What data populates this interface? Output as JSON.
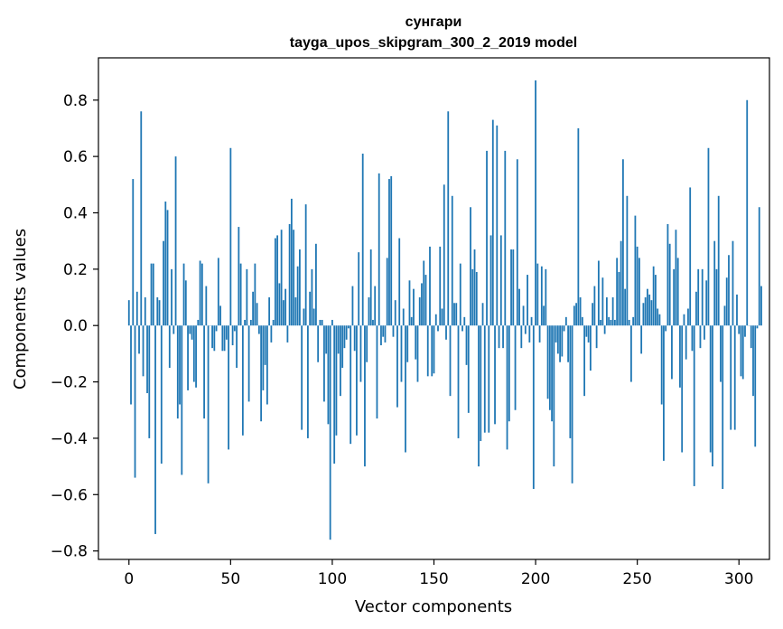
{
  "chart_data": {
    "type": "bar",
    "title": "сунгари",
    "subtitle": "tayga_upos_skipgram_300_2_2019 model",
    "xlabel": "Vector components",
    "ylabel": "Components values",
    "xlim": [
      -15,
      315
    ],
    "ylim": [
      -0.83,
      0.95
    ],
    "xticks": [
      0,
      50,
      100,
      150,
      200,
      250,
      300
    ],
    "xtick_labels": [
      "0",
      "50",
      "100",
      "150",
      "200",
      "250",
      "300"
    ],
    "yticks": [
      -0.8,
      -0.6,
      -0.4,
      -0.2,
      0.0,
      0.2,
      0.4,
      0.6,
      0.8
    ],
    "ytick_labels": [
      "−0.8",
      "−0.6",
      "−0.4",
      "−0.2",
      "0.0",
      "0.2",
      "0.4",
      "0.6",
      "0.8"
    ],
    "grid": false,
    "bar_color": "#1f77b4",
    "values": [
      0.09,
      -0.28,
      0.52,
      -0.54,
      0.12,
      -0.1,
      0.76,
      -0.18,
      0.1,
      -0.24,
      -0.4,
      0.22,
      0.22,
      -0.74,
      0.1,
      0.09,
      -0.49,
      0.3,
      0.44,
      0.41,
      -0.15,
      0.2,
      -0.03,
      0.6,
      -0.33,
      -0.28,
      -0.53,
      0.22,
      0.16,
      -0.23,
      -0.03,
      -0.05,
      -0.2,
      -0.22,
      0.02,
      0.23,
      0.22,
      -0.33,
      0.14,
      -0.56,
      0.0,
      -0.08,
      -0.09,
      -0.02,
      0.24,
      0.07,
      -0.09,
      -0.09,
      -0.05,
      -0.44,
      0.63,
      -0.07,
      -0.02,
      -0.15,
      0.35,
      0.22,
      -0.39,
      0.02,
      0.2,
      -0.27,
      0.02,
      0.12,
      0.22,
      0.08,
      -0.03,
      -0.34,
      -0.23,
      -0.14,
      -0.28,
      0.1,
      -0.06,
      0.02,
      0.31,
      0.32,
      0.15,
      0.34,
      0.09,
      0.13,
      -0.06,
      0.36,
      0.45,
      0.34,
      0.1,
      0.21,
      0.27,
      -0.37,
      0.06,
      0.43,
      -0.4,
      0.12,
      0.2,
      0.06,
      0.29,
      -0.13,
      0.02,
      0.02,
      -0.27,
      -0.1,
      -0.35,
      -0.76,
      0.02,
      -0.49,
      -0.39,
      -0.1,
      -0.25,
      -0.15,
      -0.08,
      -0.05,
      -0.01,
      -0.42,
      0.14,
      -0.09,
      -0.39,
      0.26,
      -0.2,
      0.61,
      -0.5,
      -0.13,
      0.1,
      0.27,
      0.02,
      0.14,
      -0.33,
      0.54,
      -0.07,
      -0.04,
      -0.06,
      0.24,
      0.52,
      0.53,
      -0.04,
      0.09,
      -0.29,
      0.31,
      -0.2,
      0.06,
      -0.45,
      -0.13,
      0.16,
      0.03,
      0.13,
      -0.12,
      -0.2,
      0.1,
      0.15,
      0.23,
      0.18,
      -0.18,
      0.28,
      -0.18,
      -0.17,
      0.04,
      -0.02,
      0.28,
      0.06,
      0.5,
      -0.05,
      0.76,
      -0.25,
      0.46,
      0.08,
      0.08,
      -0.4,
      0.22,
      -0.02,
      0.03,
      -0.14,
      -0.31,
      0.42,
      0.2,
      0.27,
      0.19,
      -0.5,
      -0.41,
      0.08,
      -0.38,
      0.62,
      -0.38,
      0.32,
      0.73,
      -0.35,
      0.71,
      -0.08,
      0.32,
      -0.08,
      0.62,
      -0.44,
      -0.34,
      0.27,
      0.27,
      -0.3,
      0.59,
      0.13,
      -0.08,
      0.07,
      -0.03,
      0.18,
      -0.06,
      0.03,
      -0.58,
      0.87,
      0.22,
      -0.06,
      0.21,
      0.07,
      0.2,
      -0.26,
      -0.3,
      -0.34,
      -0.5,
      -0.06,
      -0.1,
      -0.13,
      -0.11,
      -0.02,
      0.03,
      -0.13,
      -0.4,
      -0.56,
      0.07,
      0.08,
      0.7,
      0.1,
      0.03,
      -0.25,
      -0.04,
      -0.06,
      -0.16,
      0.08,
      0.14,
      -0.08,
      0.23,
      0.02,
      0.17,
      -0.03,
      0.1,
      0.03,
      0.02,
      0.1,
      0.02,
      0.24,
      0.19,
      0.3,
      0.59,
      0.13,
      0.46,
      0.02,
      -0.2,
      0.03,
      0.39,
      0.28,
      0.24,
      -0.1,
      0.08,
      0.1,
      0.13,
      0.11,
      0.09,
      0.21,
      0.18,
      0.06,
      0.04,
      -0.28,
      -0.48,
      -0.02,
      0.36,
      0.29,
      -0.19,
      0.2,
      0.34,
      0.24,
      -0.22,
      -0.45,
      0.04,
      -0.12,
      0.06,
      0.49,
      -0.09,
      -0.57,
      0.12,
      0.2,
      -0.08,
      0.2,
      -0.05,
      0.16,
      0.63,
      -0.45,
      -0.5,
      0.3,
      0.2,
      0.46,
      -0.2,
      -0.58,
      0.07,
      0.17,
      0.25,
      -0.37,
      0.3,
      -0.37,
      0.11,
      -0.03,
      -0.18,
      -0.19,
      -0.04,
      0.8,
      0.0,
      -0.08,
      -0.25,
      -0.43,
      -0.01,
      0.42,
      0.14
    ]
  }
}
